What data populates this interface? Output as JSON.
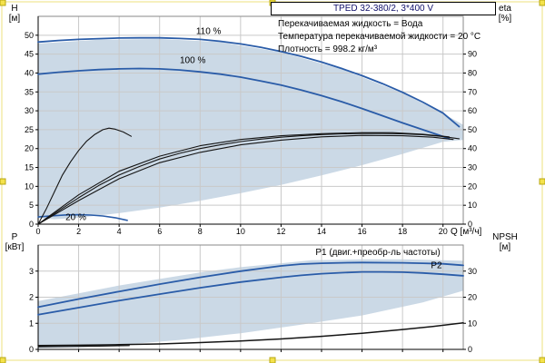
{
  "frame": {
    "handle_color": "#f4e24b",
    "handle_edge": "#b7a713",
    "border_color": "#ece07e"
  },
  "title_box": "TPED 32-380/2, 3*400 V",
  "info_lines": [
    "Перекачиваемая жидкость = Вода",
    "Температура перекачиваемой жидкости = 20 °C",
    "Плотность = 998.2 кг/м³"
  ],
  "colors": {
    "curve_blue": "#2a5ca8",
    "curve_black": "#141414",
    "grid": "#c9c9c9",
    "envelope": "#cbd9e6"
  },
  "chart_data": [
    {
      "name": "hq-chart",
      "type": "line",
      "xlabel": "Q [м³/ч]",
      "axis_labels": {
        "left": [
          "H",
          "[м]"
        ],
        "right": [
          "eta",
          "[%]"
        ]
      },
      "xlim": [
        0,
        21
      ],
      "ylim_left": [
        0,
        55
      ],
      "ylim_right": [
        0,
        110
      ],
      "x_ticks": [
        0,
        2,
        4,
        6,
        8,
        10,
        12,
        14,
        16,
        18,
        20
      ],
      "y_ticks_left": [
        0,
        5,
        10,
        15,
        20,
        25,
        30,
        35,
        40,
        45,
        50
      ],
      "y_ticks_right": [
        0,
        10,
        20,
        30,
        40,
        50,
        60,
        70,
        80,
        90
      ],
      "envelope_color": "#cbd9e6",
      "envelope": [
        [
          0,
          47.8
        ],
        [
          3,
          48.8
        ],
        [
          6,
          49.0
        ],
        [
          9,
          48.2
        ],
        [
          12,
          45.5
        ],
        [
          15,
          41.0
        ],
        [
          18,
          34.7
        ],
        [
          20,
          29.3
        ],
        [
          21,
          26.3
        ],
        [
          21,
          22.3
        ],
        [
          20,
          21.8
        ],
        [
          18,
          18.6
        ],
        [
          16,
          15.6
        ],
        [
          14,
          12.9
        ],
        [
          12,
          10.4
        ],
        [
          10,
          8.2
        ],
        [
          8,
          6.2
        ],
        [
          6,
          4.4
        ],
        [
          4,
          2.9
        ],
        [
          2,
          1.7
        ],
        [
          0.8,
          1.3
        ],
        [
          0,
          1.6
        ]
      ],
      "series": [
        {
          "name": "speed-110",
          "label": "110 %",
          "axis": "left",
          "color": "#2a5ca8",
          "width": 1.8,
          "points": [
            [
              0,
              48.2
            ],
            [
              1,
              48.6
            ],
            [
              2,
              48.9
            ],
            [
              3,
              49.1
            ],
            [
              4,
              49.25
            ],
            [
              5,
              49.3
            ],
            [
              6,
              49.3
            ],
            [
              7,
              49.15
            ],
            [
              8,
              48.9
            ],
            [
              9,
              48.4
            ],
            [
              10,
              47.7
            ],
            [
              11,
              46.8
            ],
            [
              12,
              45.7
            ],
            [
              13,
              44.4
            ],
            [
              14,
              42.9
            ],
            [
              15,
              41.2
            ],
            [
              16,
              39.3
            ],
            [
              17,
              37.2
            ],
            [
              18,
              34.9
            ],
            [
              19,
              32.3
            ],
            [
              20,
              29.4
            ],
            [
              20.8,
              25.8
            ]
          ]
        },
        {
          "name": "speed-100",
          "label": "100 %",
          "axis": "left",
          "color": "#2a5ca8",
          "width": 1.8,
          "points": [
            [
              0,
              39.7
            ],
            [
              1,
              40.2
            ],
            [
              2,
              40.6
            ],
            [
              3,
              40.9
            ],
            [
              4,
              41.1
            ],
            [
              5,
              41.2
            ],
            [
              6,
              41.1
            ],
            [
              7,
              40.8
            ],
            [
              8,
              40.3
            ],
            [
              9,
              39.7
            ],
            [
              10,
              38.9
            ],
            [
              11,
              37.9
            ],
            [
              12,
              36.8
            ],
            [
              13,
              35.5
            ],
            [
              14,
              34.0
            ],
            [
              15,
              32.4
            ],
            [
              16,
              30.6
            ],
            [
              17,
              28.7
            ],
            [
              18,
              26.8
            ],
            [
              19,
              25.0
            ],
            [
              20,
              23.2
            ],
            [
              20.3,
              22.6
            ]
          ]
        },
        {
          "name": "speed-20",
          "label": "20 %",
          "axis": "left",
          "color": "#2a5ca8",
          "width": 1.6,
          "points": [
            [
              0,
              1.9
            ],
            [
              0.7,
              2.2
            ],
            [
              1.4,
              2.45
            ],
            [
              2,
              2.5
            ],
            [
              2.6,
              2.4
            ],
            [
              3.2,
              2.15
            ],
            [
              3.8,
              1.7
            ],
            [
              4.4,
              1.0
            ]
          ]
        },
        {
          "name": "eta-curve-1",
          "axis": "right",
          "color": "#141414",
          "width": 1.1,
          "points": [
            [
              0,
              0
            ],
            [
              1,
              7
            ],
            [
              2,
              14
            ],
            [
              3,
              20.5
            ],
            [
              4,
              26
            ],
            [
              5,
              30.5
            ],
            [
              6,
              34.5
            ],
            [
              7,
              37.5
            ],
            [
              8,
              40
            ],
            [
              9,
              42
            ],
            [
              10,
              43.7
            ],
            [
              11,
              45
            ],
            [
              12,
              46
            ],
            [
              13,
              46.8
            ],
            [
              14,
              47.4
            ],
            [
              15,
              47.8
            ],
            [
              16,
              48
            ],
            [
              17,
              48
            ],
            [
              18,
              47.8
            ],
            [
              19,
              47.3
            ],
            [
              20,
              46.4
            ],
            [
              20.8,
              45.2
            ]
          ]
        },
        {
          "name": "eta-curve-2",
          "axis": "right",
          "color": "#141414",
          "width": 1.1,
          "points": [
            [
              0,
              0
            ],
            [
              2,
              12.5
            ],
            [
              4,
              24
            ],
            [
              6,
              32.5
            ],
            [
              8,
              38
            ],
            [
              10,
              42
            ],
            [
              12,
              44.5
            ],
            [
              14,
              46.2
            ],
            [
              16,
              47
            ],
            [
              18,
              46.8
            ],
            [
              19.5,
              46
            ],
            [
              20.5,
              44.8
            ]
          ]
        },
        {
          "name": "eta-curve-3",
          "axis": "right",
          "color": "#141414",
          "width": 1.1,
          "points": [
            [
              0,
              0
            ],
            [
              2,
              15.5
            ],
            [
              4,
              28
            ],
            [
              6,
              36
            ],
            [
              8,
              41.5
            ],
            [
              10,
              44.8
            ],
            [
              12,
              46.8
            ],
            [
              14,
              47.9
            ],
            [
              16,
              48.4
            ],
            [
              17.5,
              48.4
            ],
            [
              19,
              47.6
            ],
            [
              20.3,
              46.2
            ]
          ]
        },
        {
          "name": "eta-curve-20pct",
          "axis": "right",
          "color": "#141414",
          "width": 1.1,
          "points": [
            [
              0,
              0
            ],
            [
              0.4,
              8
            ],
            [
              0.8,
              17
            ],
            [
              1.2,
              26
            ],
            [
              1.6,
              33
            ],
            [
              2,
              39
            ],
            [
              2.4,
              44
            ],
            [
              2.8,
              47.5
            ],
            [
              3.2,
              50
            ],
            [
              3.5,
              50.8
            ],
            [
              3.8,
              50.3
            ],
            [
              4.2,
              48.8
            ],
            [
              4.6,
              46.5
            ]
          ]
        }
      ],
      "labels": [
        {
          "text": "110 %",
          "x": 7.8,
          "y": 50.3,
          "color": "#2a5ca8"
        },
        {
          "text": "100 %",
          "x": 7.0,
          "y": 42.6,
          "color": "#2a5ca8"
        },
        {
          "text": "20 %",
          "x": 1.35,
          "y": 1.1,
          "color": "#2a5ca8"
        }
      ]
    },
    {
      "name": "power-chart",
      "type": "line",
      "xlabel": "",
      "axis_labels": {
        "left": [
          "P",
          "[кВт]"
        ],
        "right": [
          "NPSH",
          "[м]"
        ]
      },
      "xlim": [
        0,
        21
      ],
      "ylim_left": [
        0,
        4
      ],
      "ylim_right": [
        0,
        40
      ],
      "x_ticks": [
        0,
        2,
        4,
        6,
        8,
        10,
        12,
        14,
        16,
        18,
        20
      ],
      "y_ticks_left": [
        0,
        1,
        2,
        3
      ],
      "y_ticks_right": [
        0,
        10,
        20,
        30
      ],
      "envelope_color": "#cbd9e6",
      "envelope": [
        [
          0,
          1.85
        ],
        [
          2,
          2.15
        ],
        [
          4,
          2.45
        ],
        [
          6,
          2.7
        ],
        [
          8,
          2.95
        ],
        [
          10,
          3.15
        ],
        [
          12,
          3.3
        ],
        [
          13.5,
          3.42
        ],
        [
          16,
          3.45
        ],
        [
          18,
          3.45
        ],
        [
          20,
          3.42
        ],
        [
          21,
          3.4
        ],
        [
          21,
          2.25
        ],
        [
          19,
          1.8
        ],
        [
          16,
          1.3
        ],
        [
          13,
          0.95
        ],
        [
          10,
          0.62
        ],
        [
          7,
          0.36
        ],
        [
          4,
          0.17
        ],
        [
          2,
          0.08
        ],
        [
          0,
          0.05
        ]
      ],
      "series": [
        {
          "name": "P1",
          "label": "P1 (двиг.+преобр-ль частоты)",
          "axis": "left",
          "color": "#2a5ca8",
          "width": 1.8,
          "points": [
            [
              0,
              1.62
            ],
            [
              2,
              1.93
            ],
            [
              4,
              2.22
            ],
            [
              6,
              2.5
            ],
            [
              8,
              2.76
            ],
            [
              10,
              3.0
            ],
            [
              11,
              3.1
            ],
            [
              12,
              3.2
            ],
            [
              13,
              3.27
            ],
            [
              14,
              3.3
            ],
            [
              15,
              3.32
            ],
            [
              16,
              3.33
            ],
            [
              18,
              3.32
            ],
            [
              19,
              3.3
            ],
            [
              20,
              3.28
            ],
            [
              21,
              3.22
            ]
          ]
        },
        {
          "name": "P2",
          "label": "P2",
          "axis": "left",
          "color": "#2a5ca8",
          "width": 1.8,
          "points": [
            [
              0,
              1.33
            ],
            [
              2,
              1.6
            ],
            [
              4,
              1.87
            ],
            [
              6,
              2.12
            ],
            [
              8,
              2.36
            ],
            [
              10,
              2.58
            ],
            [
              12,
              2.76
            ],
            [
              13,
              2.84
            ],
            [
              14,
              2.9
            ],
            [
              15,
              2.94
            ],
            [
              16,
              2.97
            ],
            [
              17,
              2.97
            ],
            [
              18,
              2.96
            ],
            [
              19,
              2.93
            ],
            [
              20,
              2.88
            ],
            [
              21,
              2.82
            ]
          ]
        },
        {
          "name": "NPSH",
          "label": "NPSH",
          "axis": "right",
          "color": "#141414",
          "width": 1.5,
          "points": [
            [
              0,
              1.5
            ],
            [
              2,
              1.6
            ],
            [
              4,
              1.8
            ],
            [
              6,
              2.1
            ],
            [
              8,
              2.6
            ],
            [
              10,
              3.2
            ],
            [
              12,
              4.0
            ],
            [
              14,
              5.0
            ],
            [
              16,
              6.2
            ],
            [
              18,
              7.6
            ],
            [
              19.5,
              8.8
            ],
            [
              21,
              10.2
            ]
          ]
        },
        {
          "name": "npsh-min",
          "axis": "right",
          "color": "#141414",
          "width": 1.2,
          "points": [
            [
              0,
              1.0
            ],
            [
              1.5,
              1.1
            ],
            [
              3,
              1.25
            ],
            [
              4.5,
              1.45
            ]
          ]
        }
      ],
      "labels": [
        {
          "text": "P1 (двиг.+преобр-ль частоты)",
          "x": 13.7,
          "y": 3.62,
          "color": "#2a5ca8"
        },
        {
          "text": "P2",
          "x": 19.4,
          "y": 3.12,
          "color": "#2a5ca8"
        }
      ]
    }
  ]
}
